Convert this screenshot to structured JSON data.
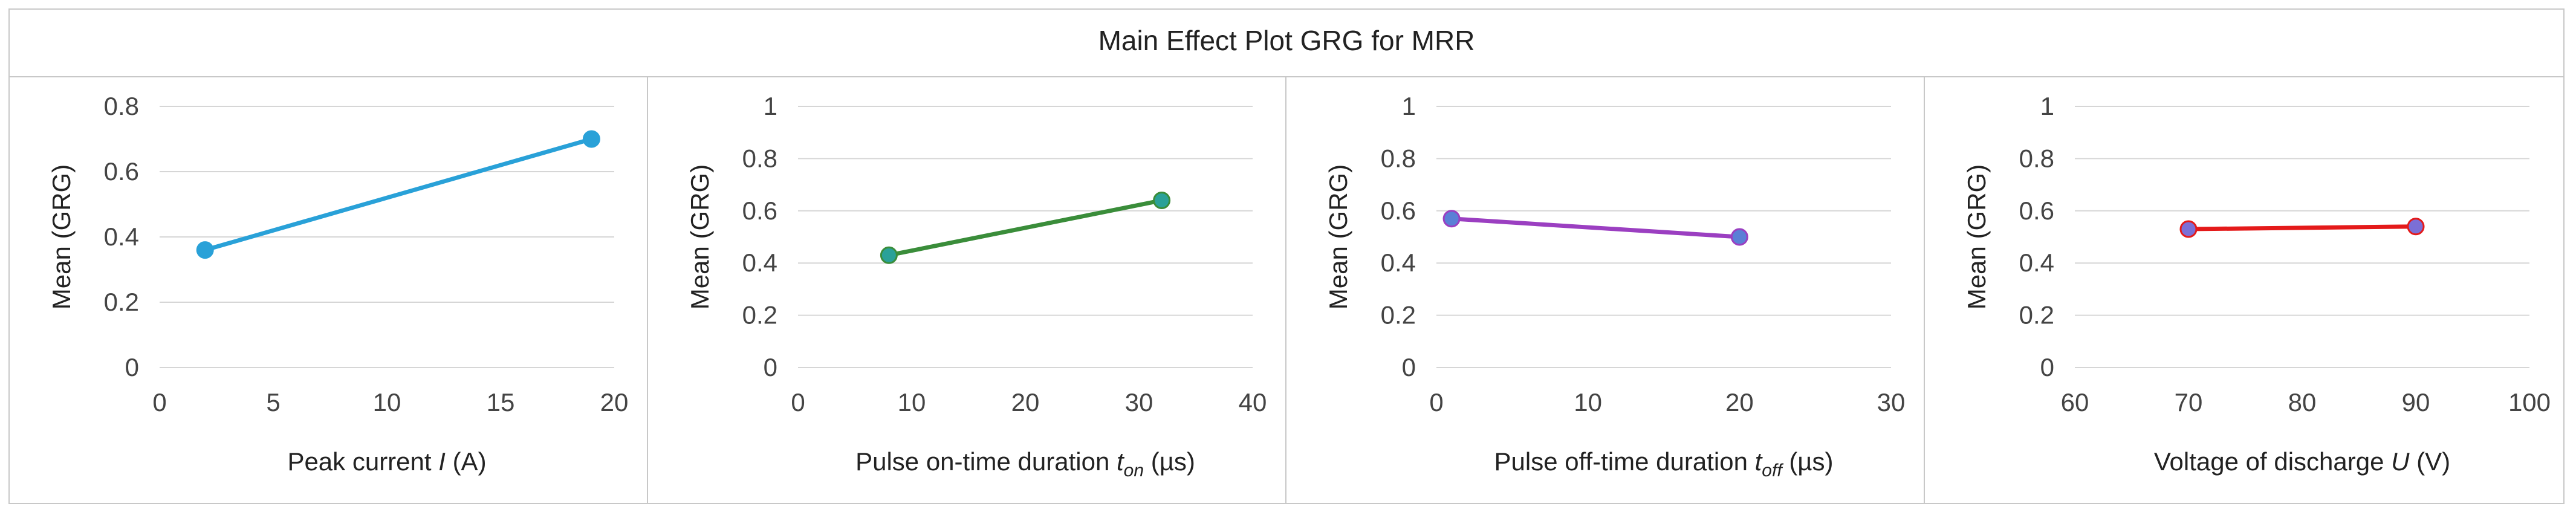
{
  "title": "Main Effect Plot GRG for MRR",
  "chart_data": [
    {
      "type": "line",
      "title": "Main Effect Plot GRG for MRR",
      "xlabel": {
        "prefix": "Peak current ",
        "var": "I",
        "sub": "",
        "suffix": " (A)"
      },
      "ylabel": "Mean (GRG)",
      "xlim": [
        0,
        20
      ],
      "xticks": [
        0,
        5,
        10,
        15,
        20
      ],
      "ylim": [
        0,
        0.8
      ],
      "yticks": [
        "0",
        "0.2",
        "0.4",
        "0.6",
        "0.8"
      ],
      "x": [
        2,
        19
      ],
      "y": [
        0.36,
        0.7
      ],
      "color": "#29a1d8",
      "marker": "#29a1d8",
      "grid": true
    },
    {
      "type": "line",
      "title": "Main Effect Plot GRG for MRR",
      "xlabel": {
        "prefix": "Pulse on-time duration ",
        "var": "t",
        "sub": "on",
        "suffix": " (µs)"
      },
      "ylabel": "Mean (GRG)",
      "xlim": [
        0,
        40
      ],
      "xticks": [
        0,
        10,
        20,
        30,
        40
      ],
      "ylim": [
        0,
        1
      ],
      "yticks": [
        "0",
        "0.2",
        "0.4",
        "0.6",
        "0.8",
        "1"
      ],
      "x": [
        8,
        32
      ],
      "y": [
        0.43,
        0.64
      ],
      "color": "#3a8d3a",
      "marker": "#2aa198",
      "grid": true
    },
    {
      "type": "line",
      "title": "Main Effect Plot GRG for MRR",
      "xlabel": {
        "prefix": "Pulse off-time duration ",
        "var": "t",
        "sub": "off",
        "suffix": " (µs)"
      },
      "ylabel": "Mean (GRG)",
      "xlim": [
        0,
        30
      ],
      "xticks": [
        0,
        10,
        20,
        30
      ],
      "ylim": [
        0,
        1
      ],
      "yticks": [
        "0",
        "0.2",
        "0.4",
        "0.6",
        "0.8",
        "1"
      ],
      "x": [
        1,
        20
      ],
      "y": [
        0.57,
        0.5
      ],
      "color": "#9b3fc1",
      "marker": "#5b7fd6",
      "grid": true
    },
    {
      "type": "line",
      "title": "Main Effect Plot GRG for MRR",
      "xlabel": {
        "prefix": "Voltage of discharge ",
        "var": "U",
        "sub": "",
        "suffix": " (V)"
      },
      "ylabel": "Mean (GRG)",
      "xlim": [
        60,
        100
      ],
      "xticks": [
        60,
        70,
        80,
        90,
        100
      ],
      "ylim": [
        0,
        1
      ],
      "yticks": [
        "0",
        "0.2",
        "0.4",
        "0.6",
        "0.8",
        "1"
      ],
      "x": [
        70,
        90
      ],
      "y": [
        0.53,
        0.54
      ],
      "color": "#e41a1a",
      "marker": "#7b6fd6",
      "grid": true
    }
  ]
}
